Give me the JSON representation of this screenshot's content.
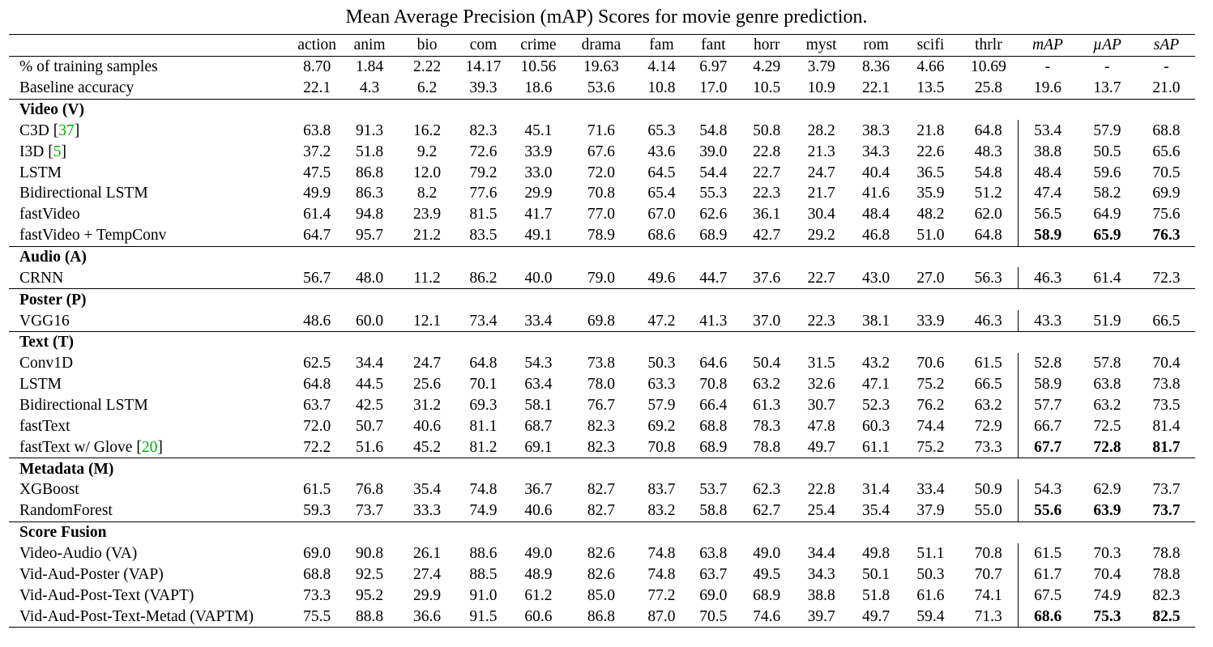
{
  "caption": "Mean Average Precision (mAP) Scores for movie genre prediction.",
  "columns": [
    "action",
    "anim",
    "bio",
    "com",
    "crime",
    "drama",
    "fam",
    "fant",
    "horr",
    "myst",
    "rom",
    "scifi",
    "thrlr"
  ],
  "metric_columns": [
    "mAP",
    "µAP",
    "sAP"
  ],
  "stats_rows": [
    {
      "label": "% of training samples",
      "values": [
        "8.70",
        "1.84",
        "2.22",
        "14.17",
        "10.56",
        "19.63",
        "4.14",
        "6.97",
        "4.29",
        "3.79",
        "8.36",
        "4.66",
        "10.69"
      ],
      "metrics": [
        "-",
        "-",
        "-"
      ]
    },
    {
      "label": "Baseline accuracy",
      "values": [
        "22.1",
        "4.3",
        "6.2",
        "39.3",
        "18.6",
        "53.6",
        "10.8",
        "17.0",
        "10.5",
        "10.9",
        "22.1",
        "13.5",
        "25.8"
      ],
      "metrics": [
        "19.6",
        "13.7",
        "21.0"
      ]
    }
  ],
  "sections": [
    {
      "title": "Video (V)",
      "rows": [
        {
          "label": "C3D ",
          "cite": "37",
          "values": [
            "63.8",
            "91.3",
            "16.2",
            "82.3",
            "45.1",
            "71.6",
            "65.3",
            "54.8",
            "50.8",
            "28.2",
            "38.3",
            "21.8",
            "64.8"
          ],
          "metrics": [
            "53.4",
            "57.9",
            "68.8"
          ],
          "bold": false
        },
        {
          "label": "I3D ",
          "cite": "5",
          "values": [
            "37.2",
            "51.8",
            "9.2",
            "72.6",
            "33.9",
            "67.6",
            "43.6",
            "39.0",
            "22.8",
            "21.3",
            "34.3",
            "22.6",
            "48.3"
          ],
          "metrics": [
            "38.8",
            "50.5",
            "65.6"
          ],
          "bold": false
        },
        {
          "label": "LSTM",
          "values": [
            "47.5",
            "86.8",
            "12.0",
            "79.2",
            "33.0",
            "72.0",
            "64.5",
            "54.4",
            "22.7",
            "24.7",
            "40.4",
            "36.5",
            "54.8"
          ],
          "metrics": [
            "48.4",
            "59.6",
            "70.5"
          ],
          "bold": false
        },
        {
          "label": "Bidirectional LSTM",
          "values": [
            "49.9",
            "86.3",
            "8.2",
            "77.6",
            "29.9",
            "70.8",
            "65.4",
            "55.3",
            "22.3",
            "21.7",
            "41.6",
            "35.9",
            "51.2"
          ],
          "metrics": [
            "47.4",
            "58.2",
            "69.9"
          ],
          "bold": false
        },
        {
          "label": "fastVideo",
          "values": [
            "61.4",
            "94.8",
            "23.9",
            "81.5",
            "41.7",
            "77.0",
            "67.0",
            "62.6",
            "36.1",
            "30.4",
            "48.4",
            "48.2",
            "62.0"
          ],
          "metrics": [
            "56.5",
            "64.9",
            "75.6"
          ],
          "bold": false
        },
        {
          "label": "fastVideo + TempConv",
          "values": [
            "64.7",
            "95.7",
            "21.2",
            "83.5",
            "49.1",
            "78.9",
            "68.6",
            "68.9",
            "42.7",
            "29.2",
            "46.8",
            "51.0",
            "64.8"
          ],
          "metrics": [
            "58.9",
            "65.9",
            "76.3"
          ],
          "bold": true
        }
      ]
    },
    {
      "title": "Audio (A)",
      "rows": [
        {
          "label": "CRNN",
          "values": [
            "56.7",
            "48.0",
            "11.2",
            "86.2",
            "40.0",
            "79.0",
            "49.6",
            "44.7",
            "37.6",
            "22.7",
            "43.0",
            "27.0",
            "56.3"
          ],
          "metrics": [
            "46.3",
            "61.4",
            "72.3"
          ],
          "bold": false
        }
      ]
    },
    {
      "title": "Poster (P)",
      "rows": [
        {
          "label": "VGG16",
          "values": [
            "48.6",
            "60.0",
            "12.1",
            "73.4",
            "33.4",
            "69.8",
            "47.2",
            "41.3",
            "37.0",
            "22.3",
            "38.1",
            "33.9",
            "46.3"
          ],
          "metrics": [
            "43.3",
            "51.9",
            "66.5"
          ],
          "bold": false
        }
      ]
    },
    {
      "title": "Text (T)",
      "rows": [
        {
          "label": "Conv1D",
          "values": [
            "62.5",
            "34.4",
            "24.7",
            "64.8",
            "54.3",
            "73.8",
            "50.3",
            "64.6",
            "50.4",
            "31.5",
            "43.2",
            "70.6",
            "61.5"
          ],
          "metrics": [
            "52.8",
            "57.8",
            "70.4"
          ],
          "bold": false
        },
        {
          "label": "LSTM",
          "values": [
            "64.8",
            "44.5",
            "25.6",
            "70.1",
            "63.4",
            "78.0",
            "63.3",
            "70.8",
            "63.2",
            "32.6",
            "47.1",
            "75.2",
            "66.5"
          ],
          "metrics": [
            "58.9",
            "63.8",
            "73.8"
          ],
          "bold": false
        },
        {
          "label": "Bidirectional LSTM",
          "values": [
            "63.7",
            "42.5",
            "31.2",
            "69.3",
            "58.1",
            "76.7",
            "57.9",
            "66.4",
            "61.3",
            "30.7",
            "52.3",
            "76.2",
            "63.2"
          ],
          "metrics": [
            "57.7",
            "63.2",
            "73.5"
          ],
          "bold": false
        },
        {
          "label": "fastText",
          "values": [
            "72.0",
            "50.7",
            "40.6",
            "81.1",
            "68.7",
            "82.3",
            "69.2",
            "68.8",
            "78.3",
            "47.8",
            "60.3",
            "74.4",
            "72.9"
          ],
          "metrics": [
            "66.7",
            "72.5",
            "81.4"
          ],
          "bold": false
        },
        {
          "label": "fastText w/ Glove ",
          "cite": "20",
          "values": [
            "72.2",
            "51.6",
            "45.2",
            "81.2",
            "69.1",
            "82.3",
            "70.8",
            "68.9",
            "78.8",
            "49.7",
            "61.1",
            "75.2",
            "73.3"
          ],
          "metrics": [
            "67.7",
            "72.8",
            "81.7"
          ],
          "bold": true
        }
      ]
    },
    {
      "title": "Metadata (M)",
      "rows": [
        {
          "label": "XGBoost",
          "values": [
            "61.5",
            "76.8",
            "35.4",
            "74.8",
            "36.7",
            "82.7",
            "83.7",
            "53.7",
            "62.3",
            "22.8",
            "31.4",
            "33.4",
            "50.9"
          ],
          "metrics": [
            "54.3",
            "62.9",
            "73.7"
          ],
          "bold": false
        },
        {
          "label": "RandomForest",
          "values": [
            "59.3",
            "73.7",
            "33.3",
            "74.9",
            "40.6",
            "82.7",
            "83.2",
            "58.8",
            "62.7",
            "25.4",
            "35.4",
            "37.9",
            "55.0"
          ],
          "metrics": [
            "55.6",
            "63.9",
            "73.7"
          ],
          "bold": true
        }
      ]
    },
    {
      "title": "Score Fusion",
      "rows": [
        {
          "label": "Video-Audio (VA)",
          "values": [
            "69.0",
            "90.8",
            "26.1",
            "88.6",
            "49.0",
            "82.6",
            "74.8",
            "63.8",
            "49.0",
            "34.4",
            "49.8",
            "51.1",
            "70.8"
          ],
          "metrics": [
            "61.5",
            "70.3",
            "78.8"
          ],
          "bold": false
        },
        {
          "label": "Vid-Aud-Poster (VAP)",
          "values": [
            "68.8",
            "92.5",
            "27.4",
            "88.5",
            "48.9",
            "82.6",
            "74.8",
            "63.7",
            "49.5",
            "34.3",
            "50.1",
            "50.3",
            "70.7"
          ],
          "metrics": [
            "61.7",
            "70.4",
            "78.8"
          ],
          "bold": false
        },
        {
          "label": "Vid-Aud-Post-Text (VAPT)",
          "values": [
            "73.3",
            "95.2",
            "29.9",
            "91.0",
            "61.2",
            "85.0",
            "77.2",
            "69.0",
            "68.9",
            "38.8",
            "51.8",
            "61.6",
            "74.1"
          ],
          "metrics": [
            "67.5",
            "74.9",
            "82.3"
          ],
          "bold": false
        },
        {
          "label": "Vid-Aud-Post-Text-Metad (VAPTM)",
          "values": [
            "75.5",
            "88.8",
            "36.6",
            "91.5",
            "60.6",
            "86.8",
            "87.0",
            "70.5",
            "74.6",
            "39.7",
            "49.7",
            "59.4",
            "71.3"
          ],
          "metrics": [
            "68.6",
            "75.3",
            "82.5"
          ],
          "bold": true
        }
      ]
    }
  ]
}
